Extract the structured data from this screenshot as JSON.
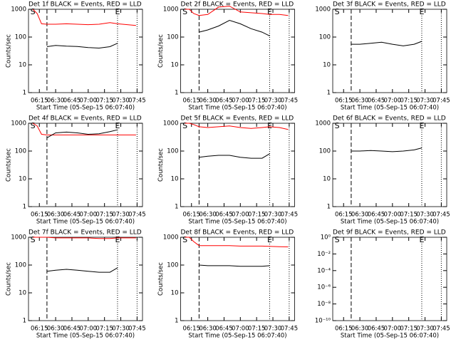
{
  "chart_data": [
    {
      "type": "line",
      "title": "Det 1f BLACK = Events, RED = LLD",
      "xlabel": "Start Time (05-Sep-15 06:07:40)",
      "ylabel": "Counts/sec",
      "x": [
        369,
        373,
        377,
        382,
        390,
        400,
        410,
        420,
        430,
        440,
        447,
        456,
        464
      ],
      "series": [
        {
          "color": "#ff0000",
          "values": [
            1000,
            700,
            300,
            290,
            290,
            300,
            290,
            280,
            290,
            330,
            300,
            280,
            260
          ]
        },
        {
          "color": "#000000",
          "values": [
            null,
            null,
            null,
            45,
            50,
            47,
            46,
            42,
            40,
            45,
            60,
            null,
            null
          ]
        }
      ],
      "xlim": [
        365,
        470
      ],
      "xticks": [
        {
          "value": 375,
          "label": "06:15"
        },
        {
          "value": 390,
          "label": "06:30"
        },
        {
          "value": 405,
          "label": "06:45"
        },
        {
          "value": 420,
          "label": "07:00"
        },
        {
          "value": 435,
          "label": "07:15"
        },
        {
          "value": 450,
          "label": "07:30"
        },
        {
          "value": 465,
          "label": "07:45"
        }
      ],
      "ylim": [
        1,
        1000
      ],
      "yticks": [
        1,
        10,
        100,
        1000
      ],
      "log_y": true,
      "annotations": [
        {
          "text": "S",
          "x": 369
        },
        {
          "text": "E",
          "x": 447
        }
      ],
      "vlines": [
        {
          "x": 382,
          "style": "dashed"
        },
        {
          "x": 447,
          "style": "dotted"
        },
        {
          "x": 465,
          "style": "dotted"
        }
      ]
    },
    {
      "type": "line",
      "title": "Det 2f BLACK = Events, RED = LLD",
      "xlabel": "Start Time (05-Sep-15 06:07:40)",
      "ylabel": "Counts/sec",
      "x": [
        369,
        373,
        377,
        382,
        390,
        400,
        410,
        420,
        430,
        440,
        447,
        456,
        464
      ],
      "series": [
        {
          "color": "#ff0000",
          "values": [
            1000,
            1000,
            700,
            600,
            650,
            1200,
            1300,
            800,
            750,
            700,
            650,
            650,
            600
          ]
        },
        {
          "color": "#000000",
          "values": [
            null,
            null,
            null,
            150,
            180,
            250,
            400,
            300,
            200,
            150,
            110,
            null,
            null
          ]
        }
      ],
      "xlim": [
        365,
        470
      ],
      "xticks": [
        {
          "value": 375,
          "label": "06:15"
        },
        {
          "value": 390,
          "label": "06:30"
        },
        {
          "value": 405,
          "label": "06:45"
        },
        {
          "value": 420,
          "label": "07:00"
        },
        {
          "value": 435,
          "label": "07:15"
        },
        {
          "value": 450,
          "label": "07:30"
        },
        {
          "value": 465,
          "label": "07:45"
        }
      ],
      "ylim": [
        1,
        1000
      ],
      "yticks": [
        1,
        10,
        100,
        1000
      ],
      "log_y": true,
      "annotations": [
        {
          "text": "S",
          "x": 369
        },
        {
          "text": "E",
          "x": 447
        }
      ],
      "vlines": [
        {
          "x": 382,
          "style": "dashed"
        },
        {
          "x": 447,
          "style": "dotted"
        },
        {
          "x": 465,
          "style": "dotted"
        }
      ]
    },
    {
      "type": "line",
      "title": "Det 3f BLACK = Events, RED = LLD",
      "xlabel": "Start Time (05-Sep-15 06:07:40)",
      "x": [
        369,
        373,
        377,
        382,
        390,
        400,
        410,
        420,
        430,
        440,
        447,
        456,
        464
      ],
      "series": [
        {
          "color": "#000000",
          "values": [
            null,
            null,
            null,
            55,
            55,
            60,
            65,
            55,
            48,
            55,
            70,
            null,
            null
          ]
        }
      ],
      "xlim": [
        365,
        470
      ],
      "xticks": [
        {
          "value": 375,
          "label": "06:15"
        },
        {
          "value": 390,
          "label": "06:30"
        },
        {
          "value": 405,
          "label": "06:45"
        },
        {
          "value": 420,
          "label": "07:00"
        },
        {
          "value": 435,
          "label": "07:15"
        },
        {
          "value": 450,
          "label": "07:30"
        },
        {
          "value": 465,
          "label": "07:45"
        }
      ],
      "ylim": [
        1,
        1000
      ],
      "yticks": [
        1,
        10,
        100,
        1000
      ],
      "log_y": true,
      "annotations": [
        {
          "text": "S",
          "x": 369
        },
        {
          "text": "E",
          "x": 447
        }
      ],
      "vlines": [
        {
          "x": 382,
          "style": "dashed"
        },
        {
          "x": 447,
          "style": "dotted"
        },
        {
          "x": 465,
          "style": "dotted"
        }
      ]
    },
    {
      "type": "line",
      "title": "Det 4f BLACK = Events, RED = LLD",
      "xlabel": "Start Time (05-Sep-15 06:07:40)",
      "ylabel": "Counts/sec",
      "x": [
        369,
        373,
        377,
        382,
        390,
        400,
        410,
        420,
        430,
        440,
        447,
        456,
        464
      ],
      "series": [
        {
          "color": "#ff0000",
          "values": [
            1000,
            800,
            400,
            380,
            380,
            380,
            380,
            380,
            380,
            380,
            380,
            380,
            380
          ]
        },
        {
          "color": "#000000",
          "values": [
            null,
            null,
            null,
            300,
            450,
            480,
            450,
            400,
            420,
            500,
            580,
            null,
            null
          ]
        }
      ],
      "xlim": [
        365,
        470
      ],
      "xticks": [
        {
          "value": 375,
          "label": "06:15"
        },
        {
          "value": 390,
          "label": "06:30"
        },
        {
          "value": 405,
          "label": "06:45"
        },
        {
          "value": 420,
          "label": "07:00"
        },
        {
          "value": 435,
          "label": "07:15"
        },
        {
          "value": 450,
          "label": "07:30"
        },
        {
          "value": 465,
          "label": "07:45"
        }
      ],
      "ylim": [
        1,
        1000
      ],
      "yticks": [
        1,
        10,
        100,
        1000
      ],
      "log_y": true,
      "annotations": [
        {
          "text": "S",
          "x": 369
        },
        {
          "text": "E",
          "x": 447
        }
      ],
      "vlines": [
        {
          "x": 382,
          "style": "dashed"
        },
        {
          "x": 447,
          "style": "dotted"
        },
        {
          "x": 465,
          "style": "dotted"
        }
      ]
    },
    {
      "type": "line",
      "title": "Det 5f BLACK = Events, RED = LLD",
      "xlabel": "Start Time (05-Sep-15 06:07:40)",
      "ylabel": "Counts/sec",
      "x": [
        369,
        373,
        377,
        382,
        390,
        400,
        410,
        420,
        430,
        440,
        447,
        456,
        464
      ],
      "series": [
        {
          "color": "#ff0000",
          "values": [
            1000,
            1000,
            900,
            750,
            700,
            750,
            800,
            700,
            650,
            700,
            750,
            700,
            600
          ]
        },
        {
          "color": "#000000",
          "values": [
            null,
            null,
            null,
            60,
            65,
            70,
            70,
            60,
            55,
            55,
            80,
            null,
            null
          ]
        }
      ],
      "xlim": [
        365,
        470
      ],
      "xticks": [
        {
          "value": 375,
          "label": "06:15"
        },
        {
          "value": 390,
          "label": "06:30"
        },
        {
          "value": 405,
          "label": "06:45"
        },
        {
          "value": 420,
          "label": "07:00"
        },
        {
          "value": 435,
          "label": "07:15"
        },
        {
          "value": 450,
          "label": "07:30"
        },
        {
          "value": 465,
          "label": "07:45"
        }
      ],
      "ylim": [
        1,
        1000
      ],
      "yticks": [
        1,
        10,
        100,
        1000
      ],
      "log_y": true,
      "annotations": [
        {
          "text": "S",
          "x": 369
        },
        {
          "text": "E",
          "x": 447
        }
      ],
      "vlines": [
        {
          "x": 382,
          "style": "dashed"
        },
        {
          "x": 447,
          "style": "dotted"
        },
        {
          "x": 465,
          "style": "dotted"
        }
      ]
    },
    {
      "type": "line",
      "title": "Det 6f BLACK = Events, RED = LLD",
      "xlabel": "Start Time (05-Sep-15 06:07:40)",
      "x": [
        369,
        373,
        377,
        382,
        390,
        400,
        410,
        420,
        430,
        440,
        447,
        456,
        464
      ],
      "series": [
        {
          "color": "#000000",
          "values": [
            null,
            null,
            null,
            100,
            100,
            105,
            100,
            95,
            100,
            110,
            130,
            null,
            null
          ]
        }
      ],
      "xlim": [
        365,
        470
      ],
      "xticks": [
        {
          "value": 375,
          "label": "06:15"
        },
        {
          "value": 390,
          "label": "06:30"
        },
        {
          "value": 405,
          "label": "06:45"
        },
        {
          "value": 420,
          "label": "07:00"
        },
        {
          "value": 435,
          "label": "07:15"
        },
        {
          "value": 450,
          "label": "07:30"
        },
        {
          "value": 465,
          "label": "07:45"
        }
      ],
      "ylim": [
        1,
        1000
      ],
      "yticks": [
        1,
        10,
        100,
        1000
      ],
      "log_y": true,
      "annotations": [
        {
          "text": "S",
          "x": 369
        },
        {
          "text": "E",
          "x": 447
        }
      ],
      "vlines": [
        {
          "x": 382,
          "style": "dashed"
        },
        {
          "x": 447,
          "style": "dotted"
        },
        {
          "x": 465,
          "style": "dotted"
        }
      ]
    },
    {
      "type": "line",
      "title": "Det 7f BLACK = Events, RED = LLD",
      "xlabel": "Start Time (05-Sep-15 06:07:40)",
      "ylabel": "Counts/sec",
      "x": [
        369,
        373,
        377,
        382,
        390,
        400,
        410,
        420,
        430,
        440,
        447,
        456,
        464
      ],
      "series": [
        {
          "color": "#ff0000",
          "values": [
            1000,
            1000,
            1000,
            1000,
            950,
            950,
            950,
            950,
            900,
            900,
            950,
            950,
            950
          ]
        },
        {
          "color": "#000000",
          "values": [
            null,
            null,
            null,
            60,
            65,
            70,
            65,
            60,
            55,
            55,
            80,
            null,
            null
          ]
        }
      ],
      "xlim": [
        365,
        470
      ],
      "xticks": [
        {
          "value": 375,
          "label": "06:15"
        },
        {
          "value": 390,
          "label": "06:30"
        },
        {
          "value": 405,
          "label": "06:45"
        },
        {
          "value": 420,
          "label": "07:00"
        },
        {
          "value": 435,
          "label": "07:15"
        },
        {
          "value": 450,
          "label": "07:30"
        },
        {
          "value": 465,
          "label": "07:45"
        }
      ],
      "ylim": [
        1,
        1000
      ],
      "yticks": [
        1,
        10,
        100,
        1000
      ],
      "log_y": true,
      "annotations": [
        {
          "text": "S",
          "x": 369
        },
        {
          "text": "E",
          "x": 447
        }
      ],
      "vlines": [
        {
          "x": 382,
          "style": "dashed"
        },
        {
          "x": 447,
          "style": "dotted"
        },
        {
          "x": 465,
          "style": "dotted"
        }
      ]
    },
    {
      "type": "line",
      "title": "Det 8f BLACK = Events, RED = LLD",
      "xlabel": "Start Time (05-Sep-15 06:07:40)",
      "ylabel": "Counts/sec",
      "x": [
        369,
        373,
        377,
        382,
        390,
        400,
        410,
        420,
        430,
        440,
        447,
        456,
        464
      ],
      "series": [
        {
          "color": "#ff0000",
          "values": [
            1000,
            1000,
            700,
            500,
            500,
            500,
            500,
            480,
            480,
            480,
            470,
            460,
            450
          ]
        },
        {
          "color": "#000000",
          "values": [
            null,
            null,
            null,
            100,
            95,
            95,
            95,
            90,
            90,
            90,
            95,
            null,
            null
          ]
        }
      ],
      "xlim": [
        365,
        470
      ],
      "xticks": [
        {
          "value": 375,
          "label": "06:15"
        },
        {
          "value": 390,
          "label": "06:30"
        },
        {
          "value": 405,
          "label": "06:45"
        },
        {
          "value": 420,
          "label": "07:00"
        },
        {
          "value": 435,
          "label": "07:15"
        },
        {
          "value": 450,
          "label": "07:30"
        },
        {
          "value": 465,
          "label": "07:45"
        }
      ],
      "ylim": [
        1,
        1000
      ],
      "yticks": [
        1,
        10,
        100,
        1000
      ],
      "log_y": true,
      "annotations": [
        {
          "text": "S",
          "x": 369
        },
        {
          "text": "E",
          "x": 447
        }
      ],
      "vlines": [
        {
          "x": 382,
          "style": "dashed"
        },
        {
          "x": 447,
          "style": "dotted"
        },
        {
          "x": 465,
          "style": "dotted"
        }
      ]
    },
    {
      "type": "line",
      "title": "Det 9f BLACK = Events, RED = LLD",
      "xlabel": "Start Time (05-Sep-15 06:07:40)",
      "x": [],
      "series": [],
      "xlim": [
        365,
        470
      ],
      "xticks": [
        {
          "value": 375,
          "label": "06:15"
        },
        {
          "value": 390,
          "label": "06:30"
        },
        {
          "value": 405,
          "label": "06:45"
        },
        {
          "value": 420,
          "label": "07:00"
        },
        {
          "value": 435,
          "label": "07:15"
        },
        {
          "value": 450,
          "label": "07:30"
        },
        {
          "value": 465,
          "label": "07:45"
        }
      ],
      "ylim": [
        1e-10,
        1
      ],
      "yticks": [
        {
          "value": 1e-10,
          "label": "10⁻¹⁰"
        },
        {
          "value": 1e-08,
          "label": "10⁻⁸"
        },
        {
          "value": 1e-06,
          "label": "10⁻⁶"
        },
        {
          "value": 0.0001,
          "label": "10⁻⁴"
        },
        {
          "value": 0.01,
          "label": "10⁻²"
        },
        {
          "value": 1,
          "label": "10⁰"
        }
      ],
      "log_y": true,
      "annotations": [
        {
          "text": "S",
          "x": 369
        },
        {
          "text": "E",
          "x": 447
        }
      ],
      "vlines": [
        {
          "x": 382,
          "style": "dashed"
        },
        {
          "x": 447,
          "style": "dotted"
        },
        {
          "x": 465,
          "style": "dotted"
        }
      ]
    }
  ]
}
